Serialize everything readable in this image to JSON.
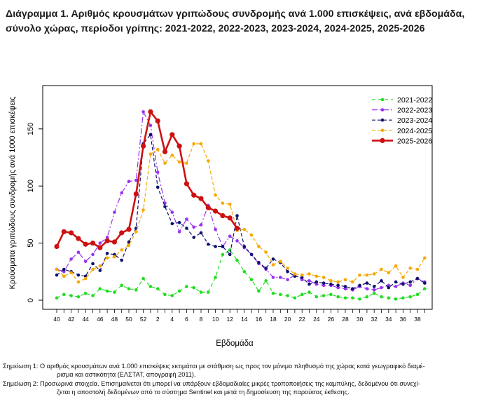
{
  "title": "Διάγραμμα 1. Αριθμός κρουσμάτων γριπώδους συνδρομής ανά 1.000 επισκέψεις, ανά εβδομάδα, σύνολο χώρας, περίοδοι γρίπης: 2021-2022, 2022-2023, 2023-2024, 2024-2025, 2025-2026",
  "notes": {
    "note1": "Σημείωση 1: Ο αριθμός κρουσμάτων ανά 1.000 επισκέψεις εκτιμάται με στάθμιση ως προς τον μόνιμο πληθυσμό της χώρας κατά γεωγραφικό διαμέ-",
    "note1_cont": "ρισμα και αστικότητα (ΕΛΣΤΑΤ, απογραφή 2011).",
    "note2": "Σημείωση 2: Προσωρινά στοιχεία. Επισημαίνεται ότι μπορεί να υπάρξουν εβδομαδιαίες μικρές τροποποιήσεις της καμπύλης, δεδομένου ότι συνεχί-",
    "note2_cont": "ζεται η αποστολή δεδομένων από το σύστημα Sentinel και μετά τη δημοσίευση της παρούσας έκθεσης."
  },
  "chart_data": {
    "type": "line",
    "xlabel": "Εβδομάδα",
    "ylabel": "Κρούσματα γριπώδους συνδρομής ανά 1000 επισκέψεις",
    "ylim": [
      0,
      185
    ],
    "yticks": [
      0,
      50,
      100,
      150
    ],
    "x_ticks": [
      "40",
      "42",
      "44",
      "46",
      "48",
      "50",
      "52",
      "2",
      "4",
      "6",
      "8",
      "10",
      "12",
      "14",
      "16",
      "18",
      "20",
      "22",
      "24",
      "26",
      "28",
      "30",
      "32",
      "34",
      "36",
      "38"
    ],
    "weeks": [
      "40",
      "41",
      "42",
      "43",
      "44",
      "45",
      "46",
      "47",
      "48",
      "49",
      "50",
      "51",
      "52",
      "1",
      "2",
      "3",
      "4",
      "5",
      "6",
      "7",
      "8",
      "9",
      "10",
      "11",
      "12",
      "13",
      "14",
      "15",
      "16",
      "17",
      "18",
      "19",
      "20",
      "21",
      "22",
      "23",
      "24",
      "25",
      "26",
      "27",
      "28",
      "29",
      "30",
      "31",
      "32",
      "33",
      "34",
      "35",
      "36",
      "37",
      "38",
      "39"
    ],
    "legend_position": "top-right",
    "series": [
      {
        "name": "2021-2022",
        "color": "#22dd22",
        "dash": "5,4",
        "width": 1.2,
        "marker": 2.3,
        "values": [
          2,
          5,
          4,
          3,
          6,
          4,
          10,
          8,
          7,
          13,
          10,
          9,
          19,
          12,
          10,
          5,
          4,
          8,
          12,
          11,
          7,
          7,
          20,
          40,
          44,
          35,
          25,
          18,
          8,
          17,
          6,
          5,
          4,
          2,
          5,
          7,
          3,
          4,
          5,
          3,
          2,
          2,
          1,
          3,
          6,
          3,
          2,
          1,
          2,
          3,
          5,
          10
        ]
      },
      {
        "name": "2022-2023",
        "color": "#9933ee",
        "dash": "8,3,2,3",
        "width": 1.2,
        "marker": 2.3,
        "values": [
          27,
          25,
          36,
          42,
          34,
          40,
          50,
          55,
          77,
          94,
          104,
          105,
          165,
          153,
          112,
          85,
          77,
          60,
          71,
          64,
          66,
          83,
          62,
          47,
          56,
          52,
          46,
          40,
          32,
          27,
          20,
          20,
          18,
          22,
          18,
          17,
          14,
          13,
          13,
          11,
          10,
          9,
          12,
          10,
          9,
          11,
          13,
          12,
          15,
          13,
          19,
          16
        ]
      },
      {
        "name": "2023-2024",
        "color": "#10106e",
        "dash": "5,3",
        "width": 1.2,
        "marker": 2.3,
        "values": [
          22,
          27,
          25,
          22,
          21,
          32,
          26,
          41,
          40,
          35,
          51,
          63,
          137,
          145,
          99,
          82,
          67,
          68,
          63,
          55,
          59,
          49,
          47,
          47,
          40,
          74,
          47,
          40,
          33,
          28,
          36,
          33,
          25,
          21,
          20,
          14,
          16,
          15,
          14,
          13,
          12,
          10,
          13,
          15,
          12,
          17,
          11,
          16,
          14,
          16,
          19,
          15
        ]
      },
      {
        "name": "2024-2025",
        "color": "#f7a800",
        "dash": "5,3",
        "width": 1.2,
        "marker": 2.3,
        "values": [
          27,
          21,
          24,
          16,
          19,
          27,
          30,
          37,
          38,
          44,
          48,
          60,
          79,
          128,
          132,
          120,
          127,
          121,
          120,
          137,
          137,
          122,
          92,
          85,
          84,
          61,
          62,
          57,
          47,
          42,
          31,
          34,
          28,
          23,
          22,
          23,
          21,
          20,
          17,
          16,
          18,
          16,
          22,
          22,
          23,
          27,
          24,
          30,
          20,
          28,
          27,
          37
        ]
      },
      {
        "name": "2025-2026",
        "color": "#cc1111",
        "dash": "",
        "width": 2.6,
        "marker": 3.6,
        "values": [
          47,
          60,
          59,
          54,
          49,
          50,
          46,
          52,
          51,
          59,
          62,
          93,
          135,
          165,
          157,
          130,
          145,
          135,
          102,
          92,
          89,
          81,
          78,
          74,
          72,
          63
        ]
      }
    ]
  }
}
